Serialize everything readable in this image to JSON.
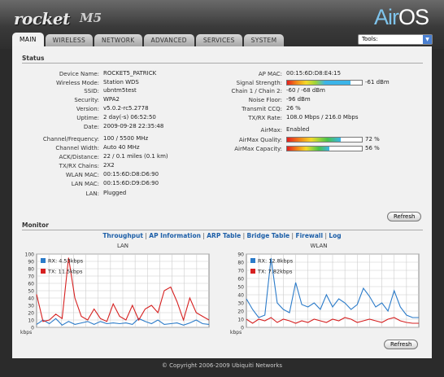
{
  "header": {
    "brand": "rocket",
    "model": "M5",
    "logo_prefix": "Air",
    "logo_suffix": "OS"
  },
  "tabs": [
    {
      "label": "MAIN",
      "active": true
    },
    {
      "label": "WIRELESS"
    },
    {
      "label": "NETWORK"
    },
    {
      "label": "ADVANCED"
    },
    {
      "label": "SERVICES"
    },
    {
      "label": "SYSTEM"
    }
  ],
  "tools": {
    "selected": "Tools:"
  },
  "status": {
    "title": "Status",
    "left": [
      {
        "label": "Device Name:",
        "value": "ROCKET5_PATRICK"
      },
      {
        "label": "Wireless Mode:",
        "value": "Station WDS"
      },
      {
        "label": "SSID:",
        "value": "ubntm5test"
      },
      {
        "label": "Security:",
        "value": "WPA2"
      },
      {
        "label": "Version:",
        "value": "v5.0.2-rc5.2778"
      },
      {
        "label": "Uptime:",
        "value": "2 day(-s) 06:52:50"
      },
      {
        "label": "Date:",
        "value": "2009-09-28 22:35:48"
      },
      {
        "label": "Channel/Frequency:",
        "value": "100 / 5500 MHz"
      },
      {
        "label": "Channel Width:",
        "value": "Auto 40 MHz"
      },
      {
        "label": "ACK/Distance:",
        "value": "22 / 0.1 miles (0.1 km)"
      },
      {
        "label": "TX/RX Chains:",
        "value": "2X2"
      },
      {
        "label": "WLAN MAC:",
        "value": "00:15:6D:D8:D6:90"
      },
      {
        "label": "LAN MAC:",
        "value": "00:15:6D:D9:D6:90"
      },
      {
        "label": "LAN:",
        "value": "Plugged"
      }
    ],
    "right": {
      "ap_mac": {
        "label": "AP MAC:",
        "value": "00:15:6D:D8:E4:15"
      },
      "signal": {
        "label": "Signal Strength:",
        "value": "-61 dBm",
        "level": 0.85
      },
      "chains": {
        "label": "Chain 1 / Chain 2:",
        "value": "-60 / -68 dBm"
      },
      "noise": {
        "label": "Noise Floor:",
        "value": "-96 dBm"
      },
      "ccq": {
        "label": "Transmit CCQ:",
        "value": "26 %"
      },
      "rate": {
        "label": "TX/RX Rate:",
        "value": "108.0 Mbps / 216.0 Mbps"
      },
      "airmax": {
        "label": "AirMax:",
        "value": "Enabled"
      },
      "airmax_quality": {
        "label": "AirMax Quality:",
        "value": "72 %",
        "level": 0.72
      },
      "airmax_capacity": {
        "label": "AirMax Capacity:",
        "value": "56 %",
        "level": 0.56
      }
    },
    "refresh": "Refresh"
  },
  "monitor": {
    "title": "Monitor",
    "links": [
      "Throughput",
      "AP Information",
      "ARP Table",
      "Bridge Table",
      "Firewall",
      "Log"
    ],
    "refresh": "Refresh",
    "colors": {
      "rx": "#2b7bc9",
      "tx": "#d62020"
    }
  },
  "chart_data": [
    {
      "type": "line",
      "title": "LAN",
      "ylabel": "kbps",
      "ylim": [
        0,
        100
      ],
      "yticks": [
        0,
        10,
        20,
        30,
        40,
        50,
        60,
        70,
        80,
        90,
        100
      ],
      "series": [
        {
          "name": "RX: 4.53kbps",
          "color": "#2b7bc9",
          "values": [
            4,
            10,
            5,
            12,
            3,
            8,
            4,
            6,
            8,
            4,
            8,
            5,
            6,
            5,
            6,
            4,
            12,
            8,
            5,
            10,
            4,
            5,
            6,
            3,
            6,
            10,
            5,
            4
          ]
        },
        {
          "name": "TX: 11.5kbps",
          "color": "#d62020",
          "values": [
            45,
            8,
            10,
            18,
            12,
            95,
            40,
            15,
            10,
            25,
            12,
            8,
            32,
            15,
            10,
            30,
            10,
            25,
            30,
            20,
            50,
            55,
            35,
            10,
            40,
            20,
            15,
            10
          ]
        }
      ]
    },
    {
      "type": "line",
      "title": "WLAN",
      "ylabel": "kbps",
      "ylim": [
        0,
        90
      ],
      "yticks": [
        0,
        10,
        20,
        30,
        40,
        50,
        60,
        70,
        80,
        90
      ],
      "series": [
        {
          "name": "RX: 12.8kbps",
          "color": "#2b7bc9",
          "values": [
            35,
            22,
            12,
            15,
            85,
            30,
            22,
            18,
            55,
            28,
            25,
            30,
            22,
            40,
            25,
            35,
            30,
            22,
            28,
            48,
            38,
            25,
            30,
            20,
            45,
            25,
            15,
            12,
            12
          ]
        },
        {
          "name": "TX: 7.82kbps",
          "color": "#d62020",
          "values": [
            10,
            5,
            10,
            8,
            12,
            6,
            10,
            8,
            5,
            8,
            6,
            10,
            8,
            6,
            10,
            8,
            12,
            10,
            6,
            8,
            10,
            8,
            6,
            10,
            12,
            8,
            6,
            5,
            5
          ]
        }
      ]
    }
  ],
  "footer": "© Copyright 2006-2009 Ubiquiti Networks"
}
